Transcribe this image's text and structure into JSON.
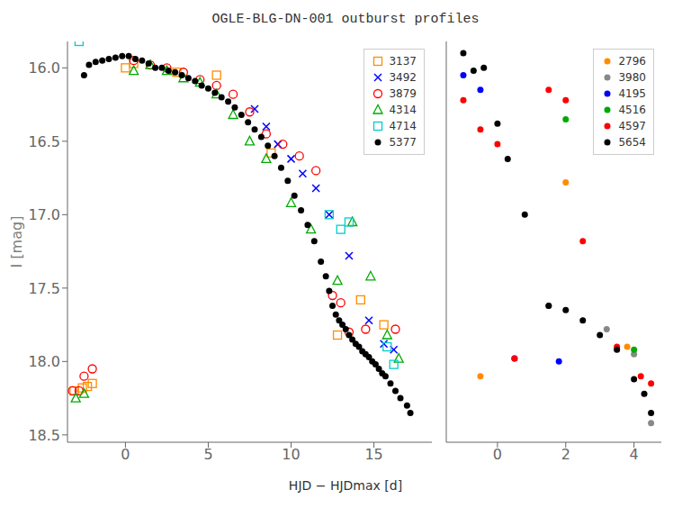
{
  "chart_data": [
    {
      "type": "scatter",
      "title": "OGLE-BLG-DN-001 outburst profiles",
      "xlabel": "HJD − HJDmax [d]",
      "ylabel": "I [mag]",
      "xlim": [
        -3.5,
        18.5
      ],
      "ylim": [
        18.55,
        15.82
      ],
      "xticks": [
        0,
        5,
        10,
        15
      ],
      "yticks": [
        {
          "value": 16,
          "label": "16.0"
        },
        {
          "value": 16.5,
          "label": "16.5"
        },
        {
          "value": 17,
          "label": "17.0"
        },
        {
          "value": 17.5,
          "label": "17.5"
        },
        {
          "value": 18,
          "label": "18.0"
        },
        {
          "value": 18.5,
          "label": "18.5"
        }
      ],
      "legend": "upper right",
      "series": [
        {
          "name": "3137",
          "color": "#FF8C00",
          "marker": "square_open",
          "x": [
            -3.1,
            -2.6,
            -2.3,
            -2.0,
            0.0,
            0.5,
            3.1,
            5.5,
            8.8,
            12.8,
            14.2,
            15.6
          ],
          "y": [
            18.2,
            18.18,
            18.17,
            18.15,
            16.0,
            15.97,
            16.03,
            16.05,
            16.58,
            17.82,
            17.58,
            17.75
          ]
        },
        {
          "name": "3492",
          "color": "#0000FF",
          "marker": "x",
          "x": [
            7.8,
            8.5,
            9.2,
            10.0,
            10.7,
            11.5,
            12.3,
            13.5,
            14.7,
            15.6,
            16.2
          ],
          "y": [
            16.28,
            16.4,
            16.52,
            16.62,
            16.72,
            16.82,
            17.0,
            17.28,
            17.72,
            17.88,
            17.92
          ]
        },
        {
          "name": "3879",
          "color": "#FF0000",
          "marker": "circle_open",
          "x": [
            -3.2,
            -2.8,
            -2.5,
            -2.0,
            0.5,
            1.5,
            2.5,
            3.5,
            4.5,
            5.5,
            6.5,
            7.5,
            8.5,
            9.5,
            10.5,
            11.5,
            12.5,
            13.0,
            13.5,
            14.5,
            16.3
          ],
          "y": [
            18.2,
            18.2,
            18.1,
            18.05,
            15.95,
            15.98,
            16.0,
            16.03,
            16.08,
            16.12,
            16.18,
            16.3,
            16.45,
            16.52,
            16.6,
            16.7,
            17.55,
            17.6,
            17.8,
            17.78,
            17.78
          ]
        },
        {
          "name": "4314",
          "color": "#00AA00",
          "marker": "triangle_open",
          "x": [
            -3.0,
            -2.5,
            0.5,
            1.5,
            2.5,
            3.5,
            4.5,
            5.5,
            6.5,
            7.5,
            8.5,
            10.0,
            11.2,
            12.8,
            13.7,
            14.8,
            15.8,
            16.5
          ],
          "y": [
            18.25,
            18.22,
            16.02,
            15.98,
            16.02,
            16.07,
            16.1,
            16.18,
            16.32,
            16.5,
            16.62,
            16.92,
            17.1,
            17.45,
            17.05,
            17.42,
            17.82,
            17.98
          ]
        },
        {
          "name": "4714",
          "color": "#00CCCC",
          "marker": "square_open",
          "x": [
            -2.8,
            12.3,
            13.0,
            13.5,
            15.8,
            16.2
          ],
          "y": [
            15.82,
            17.0,
            17.1,
            17.05,
            17.9,
            18.02
          ]
        },
        {
          "name": "5377",
          "color": "#000000",
          "marker": "circle",
          "x": [
            -2.5,
            -2.2,
            -1.8,
            -1.4,
            -1.0,
            -0.6,
            -0.2,
            0.2,
            0.6,
            1.0,
            1.4,
            1.8,
            2.2,
            2.6,
            3.0,
            3.4,
            3.8,
            4.2,
            4.6,
            5.0,
            5.4,
            5.8,
            6.2,
            6.6,
            7.0,
            7.4,
            7.8,
            8.2,
            8.6,
            9.0,
            9.4,
            9.8,
            10.2,
            10.6,
            11.0,
            11.4,
            11.8,
            12.1,
            12.3,
            12.5,
            12.7,
            12.9,
            13.1,
            13.3,
            13.5,
            13.7,
            13.9,
            14.1,
            14.3,
            14.5,
            14.7,
            14.9,
            15.1,
            15.3,
            15.5,
            15.7,
            16.0,
            16.3,
            16.6,
            17.0,
            17.2
          ],
          "y": [
            16.05,
            15.98,
            15.96,
            15.95,
            15.94,
            15.93,
            15.92,
            15.92,
            15.94,
            15.95,
            15.97,
            16.0,
            16.0,
            16.02,
            16.03,
            16.05,
            16.07,
            16.09,
            16.12,
            16.14,
            16.17,
            16.2,
            16.23,
            16.27,
            16.32,
            16.37,
            16.42,
            16.47,
            16.53,
            16.6,
            16.68,
            16.77,
            16.87,
            16.97,
            17.07,
            17.18,
            17.32,
            17.42,
            17.52,
            17.62,
            17.68,
            17.72,
            17.75,
            17.78,
            17.82,
            17.85,
            17.88,
            17.9,
            17.93,
            17.95,
            17.97,
            18.0,
            18.02,
            18.05,
            18.08,
            18.1,
            18.15,
            18.2,
            18.25,
            18.3,
            18.35
          ]
        }
      ]
    },
    {
      "type": "scatter",
      "xlim": [
        -1.5,
        4.8
      ],
      "ylim": [
        18.55,
        15.82
      ],
      "xticks": [
        0,
        2,
        4
      ],
      "yticks": [
        {
          "value": 16,
          "label": "16.0"
        },
        {
          "value": 16.5,
          "label": "16.5"
        },
        {
          "value": 17,
          "label": "17.0"
        },
        {
          "value": 17.5,
          "label": "17.5"
        },
        {
          "value": 18,
          "label": "18.0"
        },
        {
          "value": 18.5,
          "label": "18.5"
        }
      ],
      "tick_labels": "x",
      "legend": "upper right",
      "series": [
        {
          "name": "2796",
          "color": "#FF8C00",
          "marker": "circle",
          "x": [
            -0.5,
            2.0,
            3.8
          ],
          "y": [
            18.1,
            16.78,
            17.9
          ]
        },
        {
          "name": "3980",
          "color": "#888888",
          "marker": "circle",
          "x": [
            1.5,
            3.2,
            4.0,
            4.5
          ],
          "y": [
            17.62,
            17.78,
            17.95,
            18.42
          ]
        },
        {
          "name": "4195",
          "color": "#0000FF",
          "marker": "circle",
          "x": [
            -1.0,
            -0.5,
            0.5,
            1.8
          ],
          "y": [
            16.05,
            16.15,
            17.98,
            18.0
          ]
        },
        {
          "name": "4516",
          "color": "#00AA00",
          "marker": "circle",
          "x": [
            2.0,
            4.0
          ],
          "y": [
            16.35,
            17.92
          ]
        },
        {
          "name": "4597",
          "color": "#FF0000",
          "marker": "circle",
          "x": [
            -1.0,
            -0.5,
            0.0,
            0.5,
            1.5,
            2.0,
            2.5,
            3.5,
            4.2,
            4.5
          ],
          "y": [
            16.22,
            16.42,
            16.52,
            17.98,
            16.15,
            16.22,
            17.18,
            17.9,
            18.1,
            18.15
          ]
        },
        {
          "name": "5654",
          "color": "#000000",
          "marker": "circle",
          "x": [
            -1.0,
            -0.7,
            -0.4,
            0.0,
            0.3,
            0.8,
            1.5,
            2.0,
            2.5,
            3.0,
            3.5,
            4.0,
            4.3,
            4.5
          ],
          "y": [
            15.9,
            16.02,
            16.0,
            16.38,
            16.62,
            17.0,
            17.62,
            17.65,
            17.72,
            17.82,
            17.92,
            18.12,
            18.22,
            18.35
          ]
        }
      ]
    }
  ]
}
